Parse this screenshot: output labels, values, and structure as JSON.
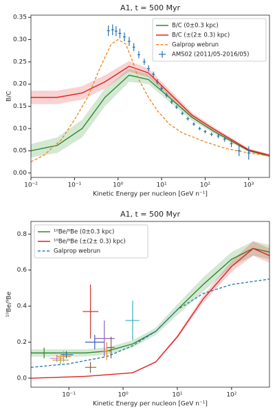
{
  "chart_data": [
    {
      "type": "line",
      "title": "A1, t = 500 Myr",
      "x_label": "Kinetic Energy per nucleon [GeV n⁻¹]",
      "y_label": "B/C",
      "xscale": "log",
      "xlim": [
        0.01,
        3000
      ],
      "ylim": [
        -0.01,
        0.355
      ],
      "legend": "upper right",
      "xticks": [
        {
          "value": 0.01,
          "label": "10⁻²"
        },
        {
          "value": 0.1,
          "label": "10⁻¹"
        },
        {
          "value": 1,
          "label": "10⁰"
        },
        {
          "value": 10,
          "label": "10¹"
        },
        {
          "value": 100,
          "label": "10²"
        },
        {
          "value": 1000,
          "label": "10³"
        }
      ],
      "yticks": [
        {
          "value": 0,
          "label": "0.00"
        },
        0.05,
        {
          "value": 0.1,
          "label": "0.10"
        },
        0.15,
        {
          "value": 0.2,
          "label": "0.20"
        },
        0.25,
        {
          "value": 0.3,
          "label": "0.30"
        },
        0.35
      ],
      "series": [
        {
          "name": "B/C (0±0.3 kpc)",
          "color": "#2a8a2a",
          "style": "band",
          "x": [
            0.01,
            0.04,
            0.15,
            0.5,
            1.8,
            5,
            15,
            50,
            150,
            1000,
            3000
          ],
          "values": [
            0.05,
            0.062,
            0.1,
            0.17,
            0.22,
            0.21,
            0.17,
            0.125,
            0.095,
            0.05,
            0.038
          ],
          "lower": [
            0.035,
            0.045,
            0.08,
            0.15,
            0.205,
            0.2,
            0.16,
            0.118,
            0.09,
            0.047,
            0.035
          ],
          "upper": [
            0.065,
            0.08,
            0.12,
            0.19,
            0.235,
            0.222,
            0.18,
            0.132,
            0.1,
            0.053,
            0.041
          ]
        },
        {
          "name": "B/C (±(2± 0.3) kpc)",
          "color": "#e02020",
          "style": "band",
          "x": [
            0.01,
            0.04,
            0.15,
            0.5,
            1.8,
            5,
            15,
            50,
            150,
            1000,
            3000
          ],
          "values": [
            0.17,
            0.17,
            0.18,
            0.205,
            0.24,
            0.225,
            0.18,
            0.13,
            0.1,
            0.052,
            0.04
          ],
          "lower": [
            0.155,
            0.155,
            0.165,
            0.19,
            0.228,
            0.215,
            0.172,
            0.124,
            0.095,
            0.049,
            0.037
          ],
          "upper": [
            0.185,
            0.185,
            0.195,
            0.22,
            0.252,
            0.235,
            0.188,
            0.136,
            0.105,
            0.055,
            0.043
          ]
        },
        {
          "name": "Galprop webrun",
          "color": "#f08a20",
          "style": "dashed",
          "x": [
            0.01,
            0.02,
            0.05,
            0.1,
            0.2,
            0.4,
            0.7,
            1,
            1.5,
            2,
            3,
            5,
            8,
            15,
            30,
            100,
            300,
            1000,
            3000
          ],
          "values": [
            0.025,
            0.04,
            0.075,
            0.12,
            0.17,
            0.24,
            0.29,
            0.3,
            0.29,
            0.26,
            0.21,
            0.17,
            0.14,
            0.11,
            0.09,
            0.07,
            0.055,
            0.045,
            0.038
          ]
        },
        {
          "name": "AMS02 (2011/05-2016/05)",
          "color": "#2070b0",
          "style": "errorbar",
          "x": [
            0.6,
            0.75,
            0.9,
            1.1,
            1.4,
            1.8,
            2.3,
            3,
            4,
            5,
            6.5,
            8,
            10,
            13,
            17,
            22,
            30,
            40,
            55,
            75,
            100,
            140,
            200,
            280,
            400,
            600,
            1000
          ],
          "values": [
            0.32,
            0.322,
            0.319,
            0.314,
            0.306,
            0.296,
            0.283,
            0.266,
            0.25,
            0.235,
            0.222,
            0.205,
            0.19,
            0.175,
            0.16,
            0.148,
            0.134,
            0.122,
            0.11,
            0.1,
            0.093,
            0.087,
            0.083,
            0.076,
            0.066,
            0.05,
            0.045
          ],
          "errors": [
            0.012,
            0.012,
            0.011,
            0.011,
            0.01,
            0.01,
            0.009,
            0.008,
            0.007,
            0.007,
            0.006,
            0.006,
            0.005,
            0.005,
            0.005,
            0.004,
            0.004,
            0.004,
            0.004,
            0.004,
            0.004,
            0.004,
            0.005,
            0.006,
            0.008,
            0.012,
            0.015
          ]
        }
      ]
    },
    {
      "type": "line",
      "title": "A1, t = 500 Myr",
      "x_label": "Kinetic Energy per nucleon [GeV n⁻¹]",
      "y_label": "¹⁰Be/⁹Be",
      "xscale": "log",
      "xlim": [
        0.02,
        500
      ],
      "ylim": [
        -0.05,
        0.87
      ],
      "legend": "upper left",
      "xticks": [
        {
          "value": 0.1,
          "label": "10⁻¹"
        },
        {
          "value": 1,
          "label": "10⁰"
        },
        {
          "value": 10,
          "label": "10¹"
        },
        {
          "value": 100,
          "label": "10²"
        }
      ],
      "yticks": [
        {
          "value": 0,
          "label": "0.0"
        },
        0.2,
        0.4,
        0.6,
        0.8
      ],
      "series": [
        {
          "name": "¹⁰Be/⁹Be (0±0.3 kpc)",
          "color": "#2a8a2a",
          "style": "band",
          "x": [
            0.02,
            0.05,
            0.2,
            0.5,
            1.5,
            4,
            10,
            30,
            100,
            250,
            500
          ],
          "values": [
            0.14,
            0.14,
            0.14,
            0.15,
            0.19,
            0.26,
            0.38,
            0.52,
            0.66,
            0.72,
            0.7
          ],
          "lower": [
            0.12,
            0.12,
            0.12,
            0.13,
            0.17,
            0.24,
            0.35,
            0.48,
            0.62,
            0.68,
            0.66
          ],
          "upper": [
            0.16,
            0.16,
            0.16,
            0.17,
            0.21,
            0.28,
            0.41,
            0.56,
            0.7,
            0.76,
            0.74
          ]
        },
        {
          "name": "¹⁰Be/⁹Be (±(2± 0.3) kpc)",
          "color": "#e02020",
          "style": "band",
          "x": [
            0.02,
            0.2,
            1.5,
            4,
            10,
            30,
            100,
            250,
            500
          ],
          "values": [
            0.0,
            0.01,
            0.03,
            0.09,
            0.23,
            0.44,
            0.62,
            0.72,
            0.68
          ],
          "lower": [
            0.0,
            0.01,
            0.028,
            0.085,
            0.22,
            0.42,
            0.59,
            0.68,
            0.64
          ],
          "upper": [
            0.0,
            0.01,
            0.032,
            0.095,
            0.24,
            0.46,
            0.65,
            0.76,
            0.72
          ]
        },
        {
          "name": "Galprop webrun",
          "color": "#2a7ab8",
          "style": "dashed",
          "x": [
            0.02,
            0.1,
            0.5,
            1.5,
            4,
            10,
            30,
            100,
            500
          ],
          "values": [
            0.06,
            0.08,
            0.12,
            0.18,
            0.26,
            0.38,
            0.47,
            0.52,
            0.55
          ]
        }
      ],
      "points": [
        {
          "x": 0.035,
          "x_low": 0.02,
          "x_high": 0.06,
          "y": 0.14,
          "yerr": 0.03,
          "color": "#2a8a2a"
        },
        {
          "x": 0.06,
          "x_low": 0.045,
          "x_high": 0.08,
          "y": 0.11,
          "yerr": 0.02,
          "color": "#e070b0"
        },
        {
          "x": 0.07,
          "x_low": 0.05,
          "x_high": 0.1,
          "y": 0.1,
          "yerr": 0.02,
          "color": "#a0a020"
        },
        {
          "x": 0.08,
          "x_low": 0.06,
          "x_high": 0.11,
          "y": 0.12,
          "yerr": 0.03,
          "color": "#f08a20"
        },
        {
          "x": 0.09,
          "x_low": 0.07,
          "x_high": 0.12,
          "y": 0.13,
          "yerr": 0.02,
          "color": "#2070b0"
        },
        {
          "x": 0.25,
          "x_low": 0.18,
          "x_high": 0.35,
          "y": 0.37,
          "yerr": 0.15,
          "color": "#d03030"
        },
        {
          "x": 0.25,
          "x_low": 0.2,
          "x_high": 0.32,
          "y": 0.06,
          "yerr": 0.03,
          "color": "#8a5a40"
        },
        {
          "x": 0.3,
          "x_low": 0.2,
          "x_high": 0.45,
          "y": 0.2,
          "yerr": 0.04,
          "color": "#3060c0"
        },
        {
          "x": 0.45,
          "x_low": 0.3,
          "x_high": 0.7,
          "y": 0.22,
          "yerr": 0.1,
          "color": "#9060c0"
        },
        {
          "x": 0.5,
          "x_low": 0.4,
          "x_high": 0.6,
          "y": 0.15,
          "yerr": 0.05,
          "color": "#f08a20"
        },
        {
          "x": 0.6,
          "x_low": 0.5,
          "x_high": 0.7,
          "y": 0.17,
          "yerr": 0.06,
          "color": "#8a5a40"
        },
        {
          "x": 1.5,
          "x_low": 1.1,
          "x_high": 2,
          "y": 0.32,
          "yerr": 0.11,
          "color": "#30b0c0"
        }
      ]
    }
  ]
}
